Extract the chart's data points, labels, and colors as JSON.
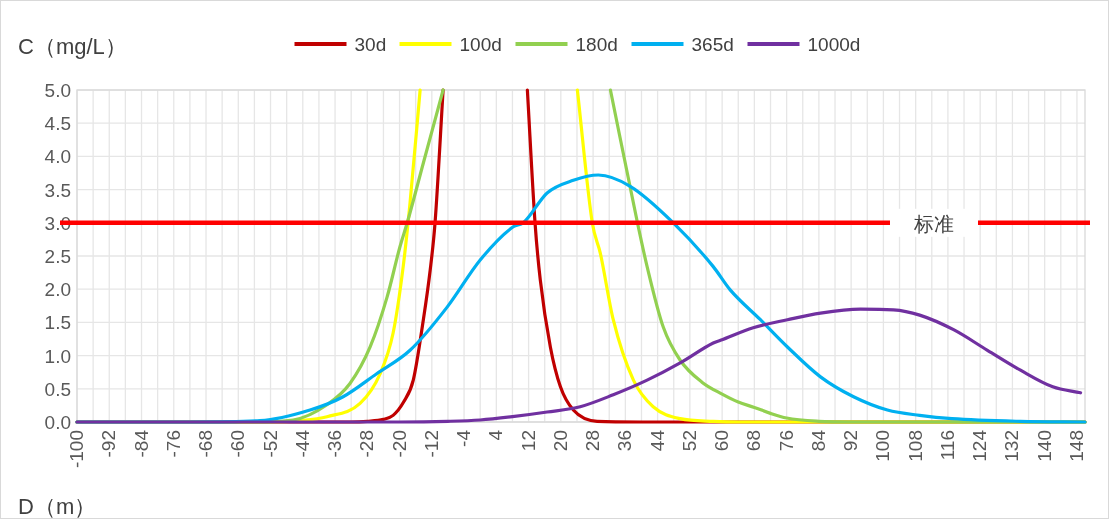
{
  "chart_data": {
    "type": "line",
    "ylabel": "C（mg/L）",
    "xlabel": "D（m）",
    "xlim": [
      -100,
      150
    ],
    "ylim": [
      0,
      5
    ],
    "xticks": [
      -100,
      {
        "value": -96,
        "label": null
      },
      -92,
      {
        "value": -88,
        "label": null
      },
      -84,
      {
        "value": -80,
        "label": null
      },
      -76,
      {
        "value": -72,
        "label": null
      },
      -68,
      {
        "value": -64,
        "label": null
      },
      -60,
      {
        "value": -56,
        "label": null
      },
      -52,
      {
        "value": -48,
        "label": null
      },
      -44,
      {
        "value": -40,
        "label": null
      },
      -36,
      {
        "value": -32,
        "label": null
      },
      -28,
      {
        "value": -24,
        "label": null
      },
      -20,
      {
        "value": -16,
        "label": null
      },
      -12,
      {
        "value": -8,
        "label": null
      },
      -4,
      {
        "value": 0,
        "label": null
      },
      4,
      {
        "value": 8,
        "label": null
      },
      12,
      {
        "value": 16,
        "label": null
      },
      20,
      {
        "value": 24,
        "label": null
      },
      28,
      {
        "value": 32,
        "label": null
      },
      36,
      {
        "value": 40,
        "label": null
      },
      44,
      {
        "value": 48,
        "label": null
      },
      52,
      {
        "value": 56,
        "label": null
      },
      60,
      {
        "value": 64,
        "label": null
      },
      68,
      {
        "value": 72,
        "label": null
      },
      76,
      {
        "value": 80,
        "label": null
      },
      84,
      {
        "value": 88,
        "label": null
      },
      92,
      {
        "value": 96,
        "label": null
      },
      100,
      {
        "value": 104,
        "label": null
      },
      108,
      {
        "value": 112,
        "label": null
      },
      116,
      {
        "value": 120,
        "label": null
      },
      124,
      {
        "value": 128,
        "label": null
      },
      132,
      {
        "value": 136,
        "label": null
      },
      140,
      {
        "value": 144,
        "label": null
      },
      148
    ],
    "yticks": [
      {
        "value": 0,
        "label": "0.0"
      },
      {
        "value": 0.5,
        "label": "0.5"
      },
      {
        "value": 1,
        "label": "1.0"
      },
      {
        "value": 1.5,
        "label": "1.5"
      },
      {
        "value": 2,
        "label": "2.0"
      },
      {
        "value": 2.5,
        "label": "2.5"
      },
      {
        "value": 3,
        "label": "3.0"
      },
      {
        "value": 3.5,
        "label": "3.5"
      },
      {
        "value": 4,
        "label": "4.0"
      },
      {
        "value": 4.5,
        "label": "4.5"
      },
      {
        "value": 5,
        "label": "5.0"
      }
    ],
    "grid": true,
    "legend": "top",
    "marker": "none",
    "line_style": "solid",
    "ref_lines": [
      {
        "axis": "y",
        "value": 3,
        "label": "标准",
        "color": "#ff0000"
      }
    ],
    "series": [
      {
        "name": "30d",
        "color": "#c00000",
        "x": [
          -100,
          -32,
          -28,
          -24,
          -21.6,
          -19,
          -16.6,
          -14.1,
          -12.4,
          -11.2,
          -9.2,
          11.7,
          13.6,
          14.9,
          17.4,
          19.9,
          23.1,
          29,
          40,
          150
        ],
        "values": [
          0,
          0,
          0.01,
          0.04,
          0.1,
          0.3,
          0.63,
          1.54,
          2.29,
          3,
          5,
          5,
          3,
          2.14,
          1.13,
          0.53,
          0.18,
          0.01,
          0,
          0
        ]
      },
      {
        "name": "100d",
        "color": "#ffff00",
        "x": [
          -100,
          -52,
          -44.7,
          -38,
          -29.8,
          -24.8,
          -21.6,
          -19.1,
          -17.4,
          -14.9,
          24.1,
          27.8,
          29.8,
          33,
          38,
          42.9,
          49.6,
          57.8,
          64,
          150
        ],
        "values": [
          0,
          0,
          0.02,
          0.08,
          0.28,
          0.73,
          1.34,
          2.34,
          3.3,
          5,
          5,
          3,
          2.54,
          1.54,
          0.63,
          0.23,
          0.05,
          0.01,
          0,
          0
        ]
      },
      {
        "name": "180d",
        "color": "#92d050",
        "x": [
          -100,
          -56,
          -46.4,
          -38,
          -32.3,
          -27.3,
          -23.1,
          -19.9,
          -18.1,
          -14.1,
          -9.2,
          32.3,
          39,
          41.4,
          45.4,
          49.6,
          55,
          60,
          64,
          68,
          72,
          76,
          84,
          92,
          150
        ],
        "values": [
          0,
          0,
          0.03,
          0.26,
          0.58,
          1.13,
          1.88,
          2.64,
          3,
          3.9,
          5,
          5,
          3,
          2.34,
          1.43,
          0.93,
          0.6,
          0.42,
          0.3,
          0.22,
          0.13,
          0.06,
          0.01,
          0,
          0
        ]
      },
      {
        "name": "365d",
        "color": "#00b0f0",
        "x": [
          -100,
          -72,
          -54.6,
          -42.2,
          -34,
          -25.6,
          -17.4,
          -8.2,
          0,
          8.2,
          10.7,
          16.6,
          23.1,
          29.3,
          37.2,
          47.9,
          57.8,
          62,
          69.5,
          76.2,
          84.4,
          92.6,
          101,
          109,
          117,
          134,
          150
        ],
        "values": [
          0,
          0,
          0.02,
          0.18,
          0.38,
          0.73,
          1.08,
          1.73,
          2.44,
          2.94,
          3,
          3.45,
          3.64,
          3.72,
          3.55,
          3,
          2.34,
          1.99,
          1.54,
          1.13,
          0.68,
          0.38,
          0.18,
          0.1,
          0.05,
          0.01,
          0
        ]
      },
      {
        "name": "1000d",
        "color": "#7030a0",
        "x": [
          -100,
          -20,
          -8,
          0,
          8,
          16.6,
          24.8,
          33,
          41.4,
          49.6,
          57.8,
          59.6,
          67.7,
          76.2,
          84.4,
          94.3,
          102.5,
          109,
          117.4,
          125.8,
          134,
          142,
          148.9
        ],
        "values": [
          0,
          0,
          0.01,
          0.03,
          0.08,
          0.15,
          0.23,
          0.41,
          0.63,
          0.89,
          1.19,
          1.23,
          1.42,
          1.54,
          1.64,
          1.7,
          1.69,
          1.61,
          1.39,
          1.08,
          0.78,
          0.53,
          0.44
        ]
      }
    ]
  }
}
